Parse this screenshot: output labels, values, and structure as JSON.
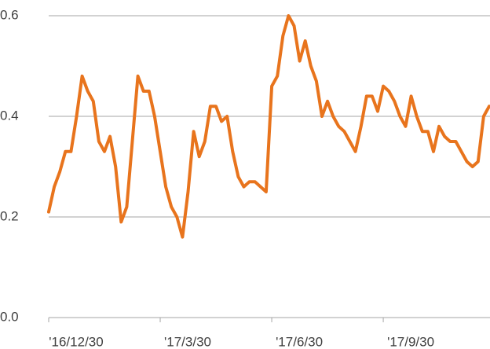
{
  "chart_data": {
    "type": "line",
    "categories": [
      "'16/12/30",
      null,
      null,
      null,
      null,
      null,
      null,
      null,
      null,
      null,
      null,
      null,
      null,
      null,
      null,
      null,
      null,
      null,
      null,
      null,
      "'17/3/30",
      null,
      null,
      null,
      null,
      null,
      null,
      null,
      null,
      null,
      null,
      null,
      null,
      null,
      null,
      null,
      null,
      null,
      null,
      null,
      "'17/6/30",
      null,
      null,
      null,
      null,
      null,
      null,
      null,
      null,
      null,
      null,
      null,
      null,
      null,
      null,
      null,
      null,
      null,
      null,
      null,
      "'17/9/30",
      null,
      null,
      null,
      null,
      null,
      null,
      null,
      null,
      null,
      null,
      null,
      null,
      null,
      null,
      null,
      null,
      null,
      null,
      null
    ],
    "values": [
      0.21,
      0.26,
      0.29,
      0.33,
      0.33,
      0.4,
      0.48,
      0.45,
      0.43,
      0.35,
      0.33,
      0.36,
      0.3,
      0.19,
      0.22,
      0.35,
      0.48,
      0.45,
      0.45,
      0.4,
      0.33,
      0.26,
      0.22,
      0.2,
      0.16,
      0.25,
      0.37,
      0.32,
      0.35,
      0.42,
      0.42,
      0.39,
      0.4,
      0.33,
      0.28,
      0.26,
      0.27,
      0.27,
      0.26,
      0.25,
      0.46,
      0.48,
      0.56,
      0.6,
      0.58,
      0.51,
      0.55,
      0.5,
      0.47,
      0.4,
      0.43,
      0.4,
      0.38,
      0.37,
      0.35,
      0.33,
      0.38,
      0.44,
      0.44,
      0.41,
      0.46,
      0.45,
      0.43,
      0.4,
      0.38,
      0.44,
      0.4,
      0.37,
      0.37,
      0.33,
      0.38,
      0.36,
      0.35,
      0.35,
      0.33,
      0.31,
      0.3,
      0.31,
      0.4,
      0.42
    ],
    "color": "#e8741d",
    "ylim": [
      0,
      0.6
    ],
    "yticks": [
      {
        "value": 0,
        "label": "0.0"
      },
      0.2,
      0.4,
      0.6
    ],
    "grid": true
  }
}
